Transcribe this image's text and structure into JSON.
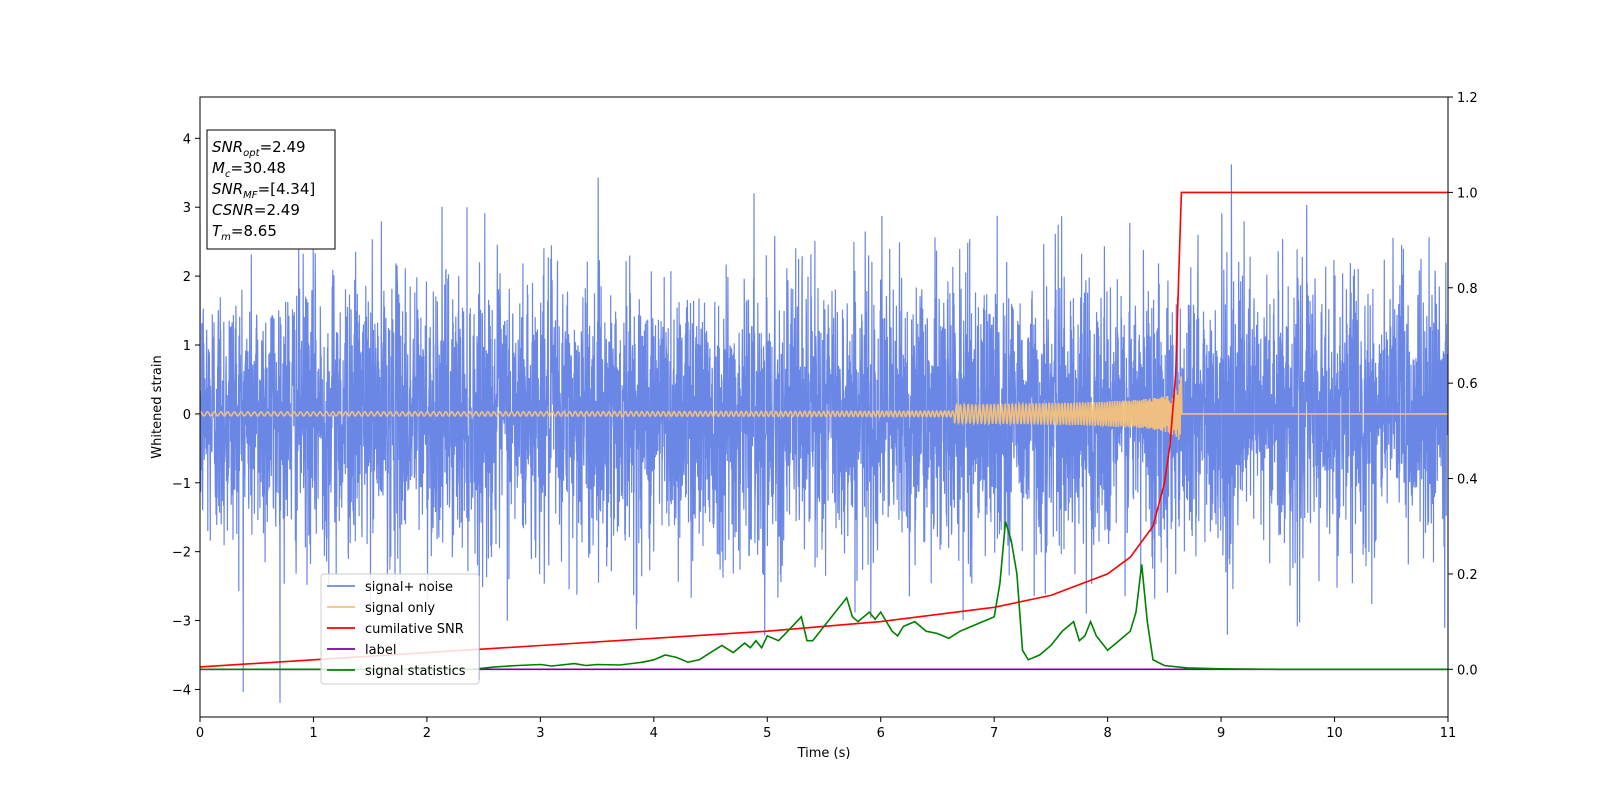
{
  "chart_data": {
    "type": "line",
    "xlabel": "Time (s)",
    "ylabel": "Whitened strain",
    "xlim": [
      0,
      11
    ],
    "ylim": [
      -4.4,
      4.6
    ],
    "y2lim": [
      -0.1,
      1.2
    ],
    "x_ticks": [
      0,
      1,
      2,
      3,
      4,
      5,
      6,
      7,
      8,
      9,
      10,
      11
    ],
    "y_ticks": [
      -4,
      -3,
      -2,
      -1,
      0,
      1,
      2,
      3,
      4
    ],
    "y2_ticks": [
      0.0,
      0.2,
      0.4,
      0.6,
      0.8,
      1.0,
      1.2
    ],
    "grid": false,
    "legend": {
      "placement": "lower-left",
      "entries": [
        {
          "name": "signal+ noise",
          "color": "#6b87e6"
        },
        {
          "name": "signal only",
          "color": "#f5c27a"
        },
        {
          "name": "cumilative SNR",
          "color": "#ff0000"
        },
        {
          "name": "label",
          "color": "#7b00a0"
        },
        {
          "name": "signal statistics",
          "color": "#008000"
        }
      ]
    },
    "annotation_box": [
      {
        "key": "SNR",
        "sub": "opt",
        "value": "=2.49"
      },
      {
        "key": "M",
        "sub": "c",
        "value": "=30.48"
      },
      {
        "key": "SNR",
        "sub": "MF",
        "value": "=[4.34]"
      },
      {
        "key": "CSNR",
        "sub": "",
        "value": "=2.49"
      },
      {
        "key": "T",
        "sub": "m",
        "value": "=8.65"
      }
    ],
    "series": [
      {
        "name": "signal+ noise",
        "axis": "left",
        "color": "#6b87e6",
        "kind": "noise",
        "range": [
          0,
          11
        ],
        "sigma": 1.0
      },
      {
        "name": "signal only",
        "axis": "left",
        "color": "#f5c27a",
        "kind": "chirp",
        "range": [
          0,
          11
        ],
        "merger_time": 8.65,
        "peak_amplitude": 0.65
      },
      {
        "name": "cumilative SNR",
        "axis": "right",
        "color": "#ff0000",
        "x": [
          0,
          1,
          2,
          3,
          4,
          5,
          6,
          7,
          7.5,
          8,
          8.2,
          8.4,
          8.5,
          8.55,
          8.6,
          8.63,
          8.65,
          11
        ],
        "y": [
          0.005,
          0.02,
          0.035,
          0.05,
          0.065,
          0.08,
          0.1,
          0.13,
          0.155,
          0.2,
          0.235,
          0.3,
          0.39,
          0.47,
          0.62,
          0.85,
          1.0,
          1.0
        ]
      },
      {
        "name": "label",
        "axis": "right",
        "color": "#7b00a0",
        "x": [
          0,
          11
        ],
        "y": [
          0.0,
          0.0
        ]
      },
      {
        "name": "signal statistics",
        "axis": "right",
        "color": "#008000",
        "x": [
          0,
          2.4,
          2.6,
          2.8,
          3.0,
          3.1,
          3.3,
          3.4,
          3.5,
          3.7,
          3.9,
          4.0,
          4.1,
          4.2,
          4.3,
          4.4,
          4.5,
          4.6,
          4.7,
          4.8,
          4.85,
          4.9,
          4.95,
          5.0,
          5.1,
          5.2,
          5.3,
          5.35,
          5.4,
          5.5,
          5.6,
          5.7,
          5.75,
          5.8,
          5.9,
          5.95,
          6.0,
          6.1,
          6.15,
          6.2,
          6.3,
          6.4,
          6.5,
          6.6,
          6.7,
          6.8,
          6.9,
          7.0,
          7.05,
          7.1,
          7.15,
          7.2,
          7.25,
          7.3,
          7.4,
          7.5,
          7.6,
          7.7,
          7.75,
          7.8,
          7.85,
          7.9,
          8.0,
          8.1,
          8.2,
          8.25,
          8.3,
          8.35,
          8.4,
          8.5,
          8.7,
          9.0,
          9.5,
          11
        ],
        "y": [
          0.0,
          0.0,
          0.005,
          0.008,
          0.01,
          0.007,
          0.012,
          0.008,
          0.01,
          0.009,
          0.015,
          0.02,
          0.03,
          0.025,
          0.015,
          0.02,
          0.035,
          0.05,
          0.035,
          0.055,
          0.045,
          0.06,
          0.045,
          0.07,
          0.06,
          0.085,
          0.11,
          0.06,
          0.06,
          0.09,
          0.12,
          0.15,
          0.11,
          0.1,
          0.12,
          0.105,
          0.12,
          0.08,
          0.07,
          0.09,
          0.1,
          0.08,
          0.075,
          0.065,
          0.08,
          0.09,
          0.1,
          0.11,
          0.18,
          0.31,
          0.27,
          0.2,
          0.04,
          0.02,
          0.03,
          0.05,
          0.08,
          0.1,
          0.06,
          0.07,
          0.1,
          0.07,
          0.04,
          0.06,
          0.08,
          0.12,
          0.22,
          0.1,
          0.02,
          0.008,
          0.003,
          0.001,
          0.0,
          0.0
        ]
      }
    ]
  }
}
